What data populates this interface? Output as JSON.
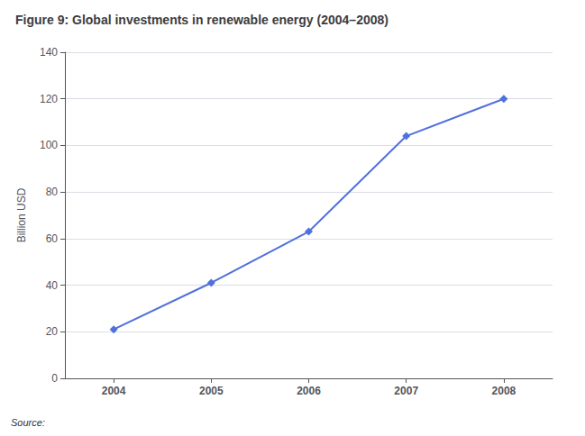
{
  "chart_data": {
    "type": "line",
    "title": "Figure 9: Global investments in renewable energy (2004–2008)",
    "y_label": "Billion USD",
    "annotations": [
      "Source:"
    ],
    "x": [
      2004,
      2005,
      2006,
      2007,
      2008
    ],
    "values": [
      21,
      41,
      63,
      104,
      120
    ],
    "xlim": [
      2003.5,
      2008.5
    ],
    "xticks": [
      2004,
      2005,
      2006,
      2007,
      2008
    ],
    "ylim": [
      0,
      140
    ],
    "yticks": [
      0,
      20,
      40,
      60,
      80,
      100,
      120,
      140
    ],
    "marker": "diamond",
    "grid": true
  }
}
